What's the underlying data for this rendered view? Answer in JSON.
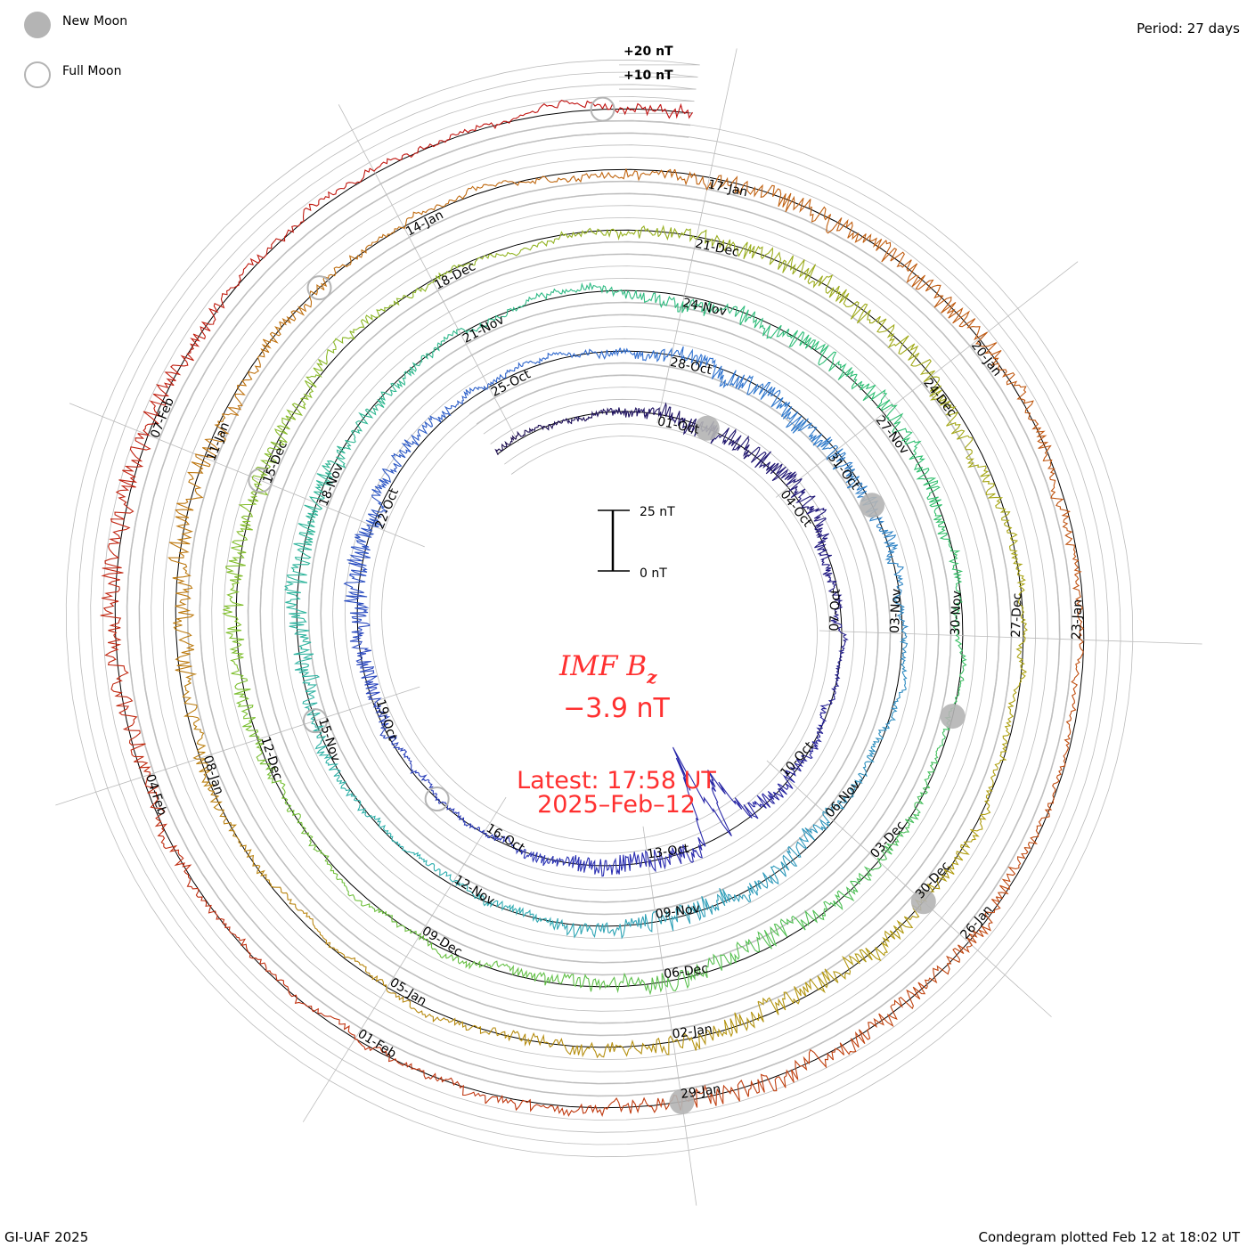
{
  "chart_data": {
    "type": "line",
    "subtype": "condegram-spiral",
    "title": "IMF Bz",
    "title_main": "IMF B",
    "title_sub": "z",
    "current_value": "−3.9 nT",
    "latest_label": "Latest: 17:58 UT",
    "latest_date": "2025–Feb–12",
    "period_label": "Period: 27 days",
    "period_days": 27,
    "start_day_offset": -3.5,
    "end_day_offset": 134.75,
    "units": "nT",
    "scale_bar": {
      "top": "25 nT",
      "bottom": "0 nT",
      "value": 25
    },
    "grid_labels": [
      "+20 nT",
      "+10 nT"
    ],
    "date_labels": [
      "01-Oct",
      "04-Oct",
      "07-Oct",
      "10-Oct",
      "13-Oct",
      "16-Oct",
      "19-Oct",
      "22-Oct",
      "25-Oct",
      "28-Oct",
      "31-Oct",
      "03-Nov",
      "06-Nov",
      "09-Nov",
      "12-Nov",
      "15-Nov",
      "18-Nov",
      "21-Nov",
      "24-Nov",
      "27-Nov",
      "30-Nov",
      "03-Dec",
      "06-Dec",
      "09-Dec",
      "12-Dec",
      "15-Dec",
      "18-Dec",
      "21-Dec",
      "24-Dec",
      "27-Dec",
      "30-Dec",
      "02-Jan",
      "05-Jan",
      "08-Jan",
      "11-Jan",
      "14-Jan",
      "17-Jan",
      "20-Jan",
      "23-Jan",
      "26-Jan",
      "29-Jan",
      "01-Feb",
      "04-Feb",
      "07-Feb"
    ],
    "date_label_step_days": 3,
    "new_moon_days": [
      1,
      31,
      61,
      90,
      120
    ],
    "full_moon_days": [
      16,
      45,
      75,
      104,
      134
    ],
    "storm_events": [
      {
        "day": 10.7,
        "min_nT": -45
      },
      {
        "day": 10.2,
        "min_nT": -30
      }
    ],
    "series_colors": [
      "#1a0a4a",
      "#2a2ab0",
      "#3070d0",
      "#30b0b0",
      "#30c070",
      "#80c030",
      "#b0a010",
      "#c07010",
      "#c04010",
      "#c01010"
    ]
  },
  "legend": {
    "new_moon": "New Moon",
    "full_moon": "Full Moon",
    "new_moon_color": "#b4b4b4"
  },
  "footer": {
    "credit": "GI-UAF 2025",
    "plotted": "Condegram plotted Feb 12 at 18:02 UT"
  },
  "accent_color": "#ff3030"
}
